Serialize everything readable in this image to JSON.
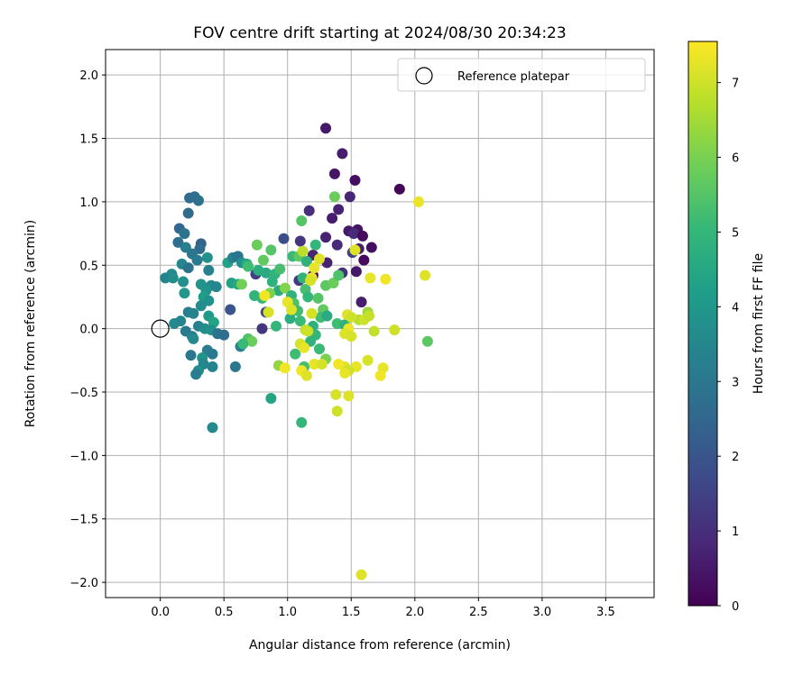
{
  "chart_data": {
    "type": "scatter",
    "title": "FOV centre drift starting at 2024/08/30 20:34:23",
    "xlabel": "Angular distance from reference (arcmin)",
    "ylabel": "Rotation from reference (arcmin)",
    "xlim": [
      -0.43,
      3.88
    ],
    "ylim": [
      -2.12,
      2.2
    ],
    "xticks": [
      0.0,
      0.5,
      1.0,
      1.5,
      2.0,
      2.5,
      3.0,
      3.5
    ],
    "xtick_labels": [
      "0.0",
      "0.5",
      "1.0",
      "1.5",
      "2.0",
      "2.5",
      "3.0",
      "3.5"
    ],
    "yticks": [
      -2.0,
      -1.5,
      -1.0,
      -0.5,
      0.0,
      0.5,
      1.0,
      1.5,
      2.0
    ],
    "ytick_labels": [
      "−2.0",
      "−1.5",
      "−1.0",
      "−0.5",
      "0.0",
      "0.5",
      "1.0",
      "1.5",
      "2.0"
    ],
    "grid": true,
    "legend": {
      "placement": "top-right",
      "entries": [
        "Reference platepar"
      ]
    },
    "reference_point": {
      "x": 0.0,
      "y": 0.0,
      "label": "Reference platepar"
    },
    "colorbar": {
      "label": "Hours from first FF file",
      "range": [
        0,
        7.55
      ],
      "ticks": [
        0,
        1,
        2,
        3,
        4,
        5,
        6,
        7
      ],
      "tick_labels": [
        "0",
        "1",
        "2",
        "3",
        "4",
        "5",
        "6",
        "7"
      ],
      "colormap": "viridis"
    },
    "points": [
      {
        "x": 1.3,
        "y": 1.58,
        "c": 0.5
      },
      {
        "x": 1.43,
        "y": 1.38,
        "c": 0.6
      },
      {
        "x": 1.37,
        "y": 1.22,
        "c": 0.4
      },
      {
        "x": 1.53,
        "y": 1.17,
        "c": 0.3
      },
      {
        "x": 1.88,
        "y": 1.1,
        "c": 0.1
      },
      {
        "x": 1.49,
        "y": 1.04,
        "c": 0.8
      },
      {
        "x": 1.4,
        "y": 0.94,
        "c": 0.7
      },
      {
        "x": 1.17,
        "y": 0.93,
        "c": 1.0
      },
      {
        "x": 1.35,
        "y": 0.87,
        "c": 0.6
      },
      {
        "x": 1.55,
        "y": 0.78,
        "c": 0.4
      },
      {
        "x": 1.48,
        "y": 0.77,
        "c": 0.5
      },
      {
        "x": 1.52,
        "y": 0.75,
        "c": 0.9
      },
      {
        "x": 1.59,
        "y": 0.73,
        "c": 0.2
      },
      {
        "x": 1.3,
        "y": 0.72,
        "c": 0.7
      },
      {
        "x": 1.1,
        "y": 0.69,
        "c": 1.2
      },
      {
        "x": 1.39,
        "y": 0.66,
        "c": 0.9
      },
      {
        "x": 1.66,
        "y": 0.64,
        "c": 0.3
      },
      {
        "x": 1.56,
        "y": 0.63,
        "c": 0.6
      },
      {
        "x": 1.51,
        "y": 0.6,
        "c": 1.5
      },
      {
        "x": 1.2,
        "y": 0.58,
        "c": 0.8
      },
      {
        "x": 1.6,
        "y": 0.54,
        "c": 0.2
      },
      {
        "x": 1.31,
        "y": 0.52,
        "c": 0.7
      },
      {
        "x": 1.54,
        "y": 0.45,
        "c": 0.5
      },
      {
        "x": 1.43,
        "y": 0.44,
        "c": 1.1
      },
      {
        "x": 1.2,
        "y": 0.42,
        "c": 0.4
      },
      {
        "x": 1.09,
        "y": 0.38,
        "c": 1.3
      },
      {
        "x": 1.58,
        "y": 0.21,
        "c": 0.6
      },
      {
        "x": 0.97,
        "y": 0.71,
        "c": 1.8
      },
      {
        "x": 0.75,
        "y": 0.43,
        "c": 1.4
      },
      {
        "x": 0.8,
        "y": 0.0,
        "c": 1.2
      },
      {
        "x": 0.55,
        "y": 0.15,
        "c": 2.0
      },
      {
        "x": 0.83,
        "y": 0.13,
        "c": 1.7
      },
      {
        "x": 0.23,
        "y": 1.03,
        "c": 2.6
      },
      {
        "x": 0.27,
        "y": 1.04,
        "c": 2.7
      },
      {
        "x": 0.3,
        "y": 1.01,
        "c": 2.8
      },
      {
        "x": 0.22,
        "y": 0.91,
        "c": 2.6
      },
      {
        "x": 0.15,
        "y": 0.79,
        "c": 2.5
      },
      {
        "x": 0.19,
        "y": 0.75,
        "c": 2.9
      },
      {
        "x": 0.14,
        "y": 0.68,
        "c": 2.7
      },
      {
        "x": 0.32,
        "y": 0.67,
        "c": 2.4
      },
      {
        "x": 0.2,
        "y": 0.64,
        "c": 3.2
      },
      {
        "x": 0.31,
        "y": 0.63,
        "c": 2.6
      },
      {
        "x": 0.25,
        "y": 0.59,
        "c": 3.0
      },
      {
        "x": 0.37,
        "y": 0.56,
        "c": 3.8
      },
      {
        "x": 0.29,
        "y": 0.54,
        "c": 3.1
      },
      {
        "x": 0.17,
        "y": 0.51,
        "c": 3.5
      },
      {
        "x": 0.22,
        "y": 0.48,
        "c": 2.9
      },
      {
        "x": 0.38,
        "y": 0.46,
        "c": 3.3
      },
      {
        "x": 0.09,
        "y": 0.43,
        "c": 3.6
      },
      {
        "x": 0.04,
        "y": 0.4,
        "c": 3.4
      },
      {
        "x": 0.1,
        "y": 0.4,
        "c": 3.7
      },
      {
        "x": 0.18,
        "y": 0.37,
        "c": 3.8
      },
      {
        "x": 0.32,
        "y": 0.35,
        "c": 3.9
      },
      {
        "x": 0.4,
        "y": 0.34,
        "c": 3.6
      },
      {
        "x": 0.44,
        "y": 0.33,
        "c": 3.5
      },
      {
        "x": 0.36,
        "y": 0.3,
        "c": 3.9
      },
      {
        "x": 0.19,
        "y": 0.28,
        "c": 4.0
      },
      {
        "x": 0.34,
        "y": 0.25,
        "c": 4.2
      },
      {
        "x": 0.38,
        "y": 0.22,
        "c": 3.8
      },
      {
        "x": 0.32,
        "y": 0.18,
        "c": 3.7
      },
      {
        "x": 0.22,
        "y": 0.13,
        "c": 3.2
      },
      {
        "x": 0.26,
        "y": 0.12,
        "c": 3.4
      },
      {
        "x": 0.38,
        "y": 0.1,
        "c": 4.0
      },
      {
        "x": 0.11,
        "y": 0.04,
        "c": 3.6
      },
      {
        "x": 0.16,
        "y": 0.06,
        "c": 3.5
      },
      {
        "x": 0.42,
        "y": 0.05,
        "c": 4.4
      },
      {
        "x": 0.3,
        "y": 0.02,
        "c": 3.4
      },
      {
        "x": 0.35,
        "y": 0.0,
        "c": 3.7
      },
      {
        "x": 0.2,
        "y": -0.02,
        "c": 3.1
      },
      {
        "x": 0.4,
        "y": -0.01,
        "c": 3.8
      },
      {
        "x": 0.25,
        "y": -0.06,
        "c": 3.3
      },
      {
        "x": 0.45,
        "y": -0.04,
        "c": 2.9
      },
      {
        "x": 0.5,
        "y": -0.05,
        "c": 2.7
      },
      {
        "x": 0.26,
        "y": -0.08,
        "c": 3.6
      },
      {
        "x": 0.37,
        "y": -0.17,
        "c": 3.2
      },
      {
        "x": 0.41,
        "y": -0.2,
        "c": 3.1
      },
      {
        "x": 0.24,
        "y": -0.21,
        "c": 3.0
      },
      {
        "x": 0.33,
        "y": -0.23,
        "c": 3.9
      },
      {
        "x": 0.34,
        "y": -0.28,
        "c": 3.5
      },
      {
        "x": 0.3,
        "y": -0.33,
        "c": 3.7
      },
      {
        "x": 0.28,
        "y": -0.36,
        "c": 3.2
      },
      {
        "x": 0.41,
        "y": -0.3,
        "c": 3.4
      },
      {
        "x": 0.59,
        "y": -0.3,
        "c": 3.0
      },
      {
        "x": 0.41,
        "y": -0.78,
        "c": 3.6
      },
      {
        "x": 0.63,
        "y": -0.14,
        "c": 3.3
      },
      {
        "x": 0.53,
        "y": 0.52,
        "c": 4.3
      },
      {
        "x": 0.57,
        "y": 0.56,
        "c": 3.3
      },
      {
        "x": 0.61,
        "y": 0.57,
        "c": 2.9
      },
      {
        "x": 0.64,
        "y": 0.52,
        "c": 3.8
      },
      {
        "x": 0.68,
        "y": 0.51,
        "c": 4.5
      },
      {
        "x": 0.69,
        "y": 0.49,
        "c": 5.2
      },
      {
        "x": 0.76,
        "y": 0.66,
        "c": 5.8
      },
      {
        "x": 0.87,
        "y": 0.62,
        "c": 5.5
      },
      {
        "x": 0.81,
        "y": 0.54,
        "c": 5.7
      },
      {
        "x": 0.77,
        "y": 0.46,
        "c": 4.7
      },
      {
        "x": 0.83,
        "y": 0.44,
        "c": 4.6
      },
      {
        "x": 0.9,
        "y": 0.43,
        "c": 4.9
      },
      {
        "x": 0.94,
        "y": 0.47,
        "c": 5.3
      },
      {
        "x": 1.04,
        "y": 0.57,
        "c": 5.1
      },
      {
        "x": 1.09,
        "y": 0.57,
        "c": 5.6
      },
      {
        "x": 1.11,
        "y": 0.85,
        "c": 5.5
      },
      {
        "x": 1.15,
        "y": 0.53,
        "c": 4.8
      },
      {
        "x": 1.22,
        "y": 0.66,
        "c": 5.0
      },
      {
        "x": 1.37,
        "y": 1.04,
        "c": 5.8
      },
      {
        "x": 0.88,
        "y": 0.37,
        "c": 4.8
      },
      {
        "x": 0.56,
        "y": 0.36,
        "c": 4.3
      },
      {
        "x": 0.61,
        "y": 0.35,
        "c": 4.5
      },
      {
        "x": 0.64,
        "y": 0.35,
        "c": 5.9
      },
      {
        "x": 0.93,
        "y": 0.3,
        "c": 4.6
      },
      {
        "x": 0.86,
        "y": 0.28,
        "c": 6.0
      },
      {
        "x": 0.74,
        "y": 0.26,
        "c": 4.9
      },
      {
        "x": 0.8,
        "y": 0.24,
        "c": 5.0
      },
      {
        "x": 0.98,
        "y": 0.32,
        "c": 6.1
      },
      {
        "x": 1.03,
        "y": 0.26,
        "c": 4.9
      },
      {
        "x": 1.05,
        "y": 0.2,
        "c": 5.4
      },
      {
        "x": 1.08,
        "y": 0.14,
        "c": 5.2
      },
      {
        "x": 1.02,
        "y": 0.08,
        "c": 4.7
      },
      {
        "x": 1.1,
        "y": 0.06,
        "c": 5.1
      },
      {
        "x": 1.12,
        "y": 0.4,
        "c": 4.9
      },
      {
        "x": 1.14,
        "y": 0.31,
        "c": 5.3
      },
      {
        "x": 1.16,
        "y": 0.25,
        "c": 5.0
      },
      {
        "x": 1.24,
        "y": 0.24,
        "c": 5.5
      },
      {
        "x": 1.3,
        "y": 0.34,
        "c": 5.6
      },
      {
        "x": 1.36,
        "y": 0.36,
        "c": 5.8
      },
      {
        "x": 1.4,
        "y": 0.42,
        "c": 5.4
      },
      {
        "x": 1.28,
        "y": 0.15,
        "c": 5.7
      },
      {
        "x": 1.26,
        "y": 0.09,
        "c": 5.2
      },
      {
        "x": 1.31,
        "y": 0.1,
        "c": 4.6
      },
      {
        "x": 1.2,
        "y": 0.02,
        "c": 4.8
      },
      {
        "x": 1.39,
        "y": 0.04,
        "c": 5.2
      },
      {
        "x": 1.45,
        "y": 0.03,
        "c": 4.8
      },
      {
        "x": 0.91,
        "y": 0.02,
        "c": 5.0
      },
      {
        "x": 0.69,
        "y": -0.08,
        "c": 5.4
      },
      {
        "x": 0.72,
        "y": -0.1,
        "c": 5.8
      },
      {
        "x": 0.65,
        "y": -0.12,
        "c": 5.1
      },
      {
        "x": 1.22,
        "y": -0.05,
        "c": 5.0
      },
      {
        "x": 1.18,
        "y": -0.1,
        "c": 4.9
      },
      {
        "x": 1.06,
        "y": -0.2,
        "c": 5.2
      },
      {
        "x": 1.13,
        "y": -0.3,
        "c": 5.3
      },
      {
        "x": 1.25,
        "y": -0.16,
        "c": 5.1
      },
      {
        "x": 1.3,
        "y": -0.24,
        "c": 6.0
      },
      {
        "x": 0.93,
        "y": -0.29,
        "c": 6.3
      },
      {
        "x": 0.87,
        "y": -0.55,
        "c": 4.4
      },
      {
        "x": 1.11,
        "y": -0.74,
        "c": 5.0
      },
      {
        "x": 2.1,
        "y": -0.1,
        "c": 5.6
      },
      {
        "x": 1.56,
        "y": 0.07,
        "c": 6.7
      },
      {
        "x": 1.63,
        "y": 0.13,
        "c": 6.4
      },
      {
        "x": 2.03,
        "y": 1.0,
        "c": 7.3
      },
      {
        "x": 2.08,
        "y": 0.42,
        "c": 7.2
      },
      {
        "x": 1.77,
        "y": 0.39,
        "c": 7.4
      },
      {
        "x": 1.65,
        "y": 0.4,
        "c": 7.3
      },
      {
        "x": 1.6,
        "y": 0.07,
        "c": 7.0
      },
      {
        "x": 1.64,
        "y": 0.1,
        "c": 6.9
      },
      {
        "x": 1.47,
        "y": 0.11,
        "c": 7.2
      },
      {
        "x": 1.5,
        "y": 0.09,
        "c": 7.0
      },
      {
        "x": 1.48,
        "y": 0.0,
        "c": 7.4
      },
      {
        "x": 1.45,
        "y": -0.04,
        "c": 7.2
      },
      {
        "x": 1.5,
        "y": -0.06,
        "c": 7.1
      },
      {
        "x": 1.68,
        "y": -0.02,
        "c": 6.9
      },
      {
        "x": 1.84,
        "y": -0.01,
        "c": 7.0
      },
      {
        "x": 1.63,
        "y": -0.25,
        "c": 7.1
      },
      {
        "x": 1.75,
        "y": -0.31,
        "c": 7.3
      },
      {
        "x": 1.73,
        "y": -0.37,
        "c": 7.4
      },
      {
        "x": 1.54,
        "y": -0.3,
        "c": 7.3
      },
      {
        "x": 1.45,
        "y": -0.3,
        "c": 7.2
      },
      {
        "x": 1.48,
        "y": -0.33,
        "c": 7.0
      },
      {
        "x": 1.4,
        "y": -0.28,
        "c": 7.4
      },
      {
        "x": 1.45,
        "y": -0.35,
        "c": 7.3
      },
      {
        "x": 1.38,
        "y": -0.52,
        "c": 7.1
      },
      {
        "x": 1.48,
        "y": -0.53,
        "c": 7.2
      },
      {
        "x": 1.39,
        "y": -0.65,
        "c": 7.0
      },
      {
        "x": 1.21,
        "y": -0.28,
        "c": 7.3
      },
      {
        "x": 1.27,
        "y": -0.28,
        "c": 7.1
      },
      {
        "x": 1.11,
        "y": -0.33,
        "c": 7.4
      },
      {
        "x": 1.15,
        "y": -0.37,
        "c": 7.2
      },
      {
        "x": 0.98,
        "y": -0.31,
        "c": 7.4
      },
      {
        "x": 1.1,
        "y": -0.12,
        "c": 7.1
      },
      {
        "x": 1.13,
        "y": -0.15,
        "c": 7.3
      },
      {
        "x": 1.14,
        "y": -0.01,
        "c": 6.9
      },
      {
        "x": 1.16,
        "y": -0.02,
        "c": 7.0
      },
      {
        "x": 1.19,
        "y": 0.12,
        "c": 7.1
      },
      {
        "x": 1.12,
        "y": 0.61,
        "c": 6.8
      },
      {
        "x": 1.21,
        "y": 0.48,
        "c": 7.3
      },
      {
        "x": 1.25,
        "y": 0.55,
        "c": 7.2
      },
      {
        "x": 1.19,
        "y": 0.4,
        "c": 7.4
      },
      {
        "x": 1.18,
        "y": 0.38,
        "c": 7.1
      },
      {
        "x": 1.0,
        "y": 0.21,
        "c": 7.3
      },
      {
        "x": 1.03,
        "y": 0.15,
        "c": 7.2
      },
      {
        "x": 0.82,
        "y": 0.26,
        "c": 7.4
      },
      {
        "x": 0.85,
        "y": 0.13,
        "c": 7.1
      },
      {
        "x": 1.53,
        "y": 0.62,
        "c": 7.2
      },
      {
        "x": 1.58,
        "y": -1.94,
        "c": 7.2
      }
    ]
  }
}
